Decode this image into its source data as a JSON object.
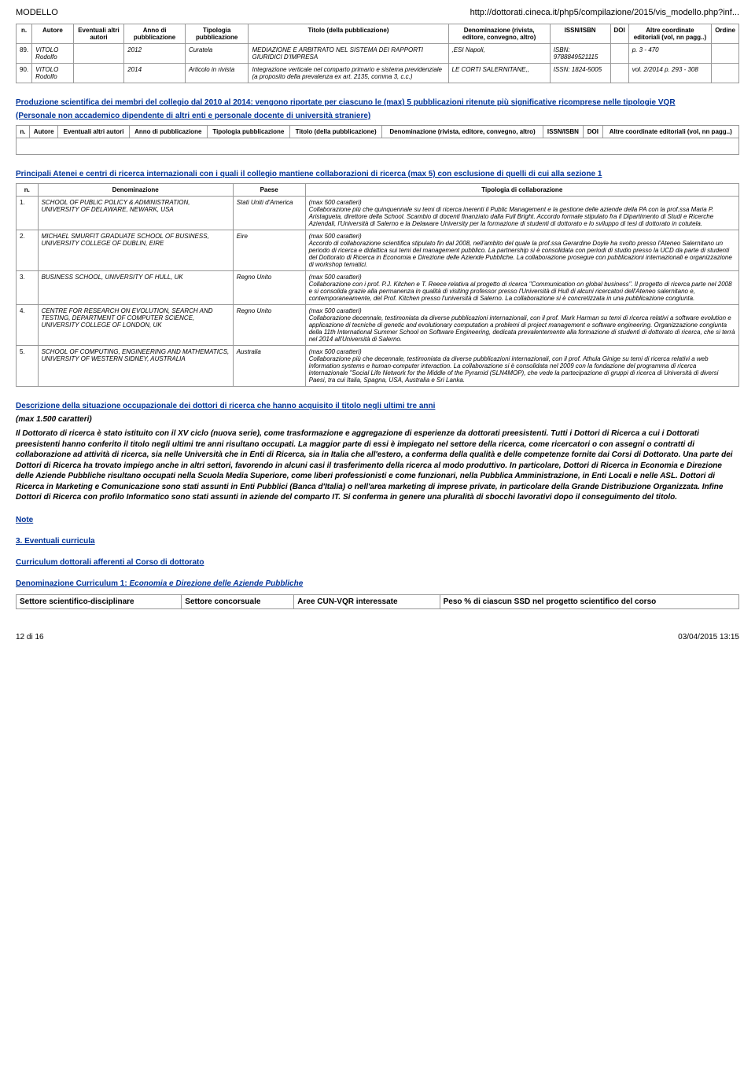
{
  "header": {
    "left": "MODELLO",
    "right": "http://dottorati.cineca.it/php5/compilazione/2015/vis_modello.php?inf..."
  },
  "table1": {
    "headers": [
      "n.",
      "Autore",
      "Eventuali altri autori",
      "Anno di pubblicazione",
      "Tipologia pubblicazione",
      "Titolo (della pubblicazione)",
      "Denominazione (rivista, editore, convegno, altro)",
      "ISSN/ISBN",
      "DOI",
      "Altre coordinate editoriali (vol, nn pagg..)",
      "Ordine"
    ],
    "rows": [
      {
        "n": "89.",
        "autore": "VITOLO Rodolfo",
        "eventuali": "",
        "anno": "2012",
        "tipologia": "Curatela",
        "titolo": "MEDIAZIONE E ARBITRATO NEL SISTEMA DEI RAPPORTI GIURIDICI D'IMPRESA",
        "denom": ",ESI Napoli,",
        "issn": "ISBN: 9788849521115",
        "doi": "",
        "altre": "p. 3 - 470",
        "ordine": ""
      },
      {
        "n": "90.",
        "autore": "VITOLO Rodolfo",
        "eventuali": "",
        "anno": "2014",
        "tipologia": "Articolo in rivista",
        "titolo": "Integrazione verticale nel comparto primario e sistema previdenziale (a proposito della prevalenza ex art. 2135, comma 3, c.c.)",
        "denom": "LE CORTI SALERNITANE,,",
        "issn": "ISSN: 1824-5005",
        "doi": "",
        "altre": "vol. 2/2014 p. 293 - 308",
        "ordine": ""
      }
    ]
  },
  "sec2": {
    "title": "Produzione scientifica dei membri del collegio dal 2010 al 2014: vengono riportate per ciascuno le (max) 5 pubblicazioni ritenute più significative ricomprese nelle tipologie VQR",
    "sub": "(Personale non accademico dipendente di altri enti e personale docente di università straniere)",
    "headers": [
      "n.",
      "Autore",
      "Eventuali altri autori",
      "Anno di pubblicazione",
      "Tipologia pubblicazione",
      "Titolo (della pubblicazione)",
      "Denominazione (rivista, editore, convegno, altro)",
      "ISSN/ISBN",
      "DOI",
      "Altre coordinate editoriali (vol, nn pagg..)"
    ]
  },
  "sec3": {
    "title": "Principali Atenei e centri di ricerca internazionali con i quali il collegio mantiene collaborazioni di ricerca (max 5) con esclusione di quelli di cui alla sezione 1",
    "headers": [
      "n.",
      "Denominazione",
      "Paese",
      "Tipologia di collaborazione"
    ],
    "hint": "(max 500 caratteri)",
    "rows": [
      {
        "n": "1.",
        "denom": "SCHOOL OF PUBLIC POLICY & ADMINISTRATION, UNIVERSITY OF DELAWARE, NEWARK, USA",
        "paese": "Stati Uniti d'America",
        "desc": "Collaborazione più che quinquennale su temi di ricerca inerenti il Public Management e la gestione delle aziende della PA con la prof.ssa Maria P. Aristagueta, direttore della School. Scambio di docenti finanziato dalla Full Bright. Accordo formale stipulato fra il Dipartimento di Studi e Ricerche Aziendali, l'Università di Salerno e la Delaware University per la formazione di studenti di dottorato e lo sviluppo di tesi di dottorato in cotutela."
      },
      {
        "n": "2.",
        "denom": "MICHAEL SMURFIT GRADUATE SCHOOL OF BUSINESS, UNIVERSITY COLLEGE OF DUBLIN, EIRE",
        "paese": "Eire",
        "desc": "Accordo di collaborazione scientifica stipulato fin dal 2008, nell'ambito del quale la prof.ssa Gerardine Doyle ha svolto presso l'Ateneo Salernitano un periodo di ricerca e didattica sui temi del management pubblico. La partnership si è consolidata con periodi di studio presso la UCD da parte di studenti del Dottorato di Ricerca in Economia e Direzione delle Aziende Pubbliche. La collaborazione prosegue con pubblicazioni internazionali e organizzazione di workshop tematici."
      },
      {
        "n": "3.",
        "denom": "BUSINESS SCHOOL, UNIVERSITY OF HULL, UK",
        "paese": "Regno Unito",
        "desc": "Collaborazione con i prof. P.J. Kitchen e T. Reece relativa al progetto di ricerca \"Communication on global business\". Il progetto di ricerca parte nel 2008 e si consolida grazie alla permanenza in qualità di visiting professor presso l'Università di Hull di alcuni ricercatori dell'Ateneo salernitano e, contemporaneamente, del Prof. Kitchen presso l'università di Salerno. La collaborazione si è concretizzata in una pubblicazione congiunta."
      },
      {
        "n": "4.",
        "denom": "CENTRE FOR RESEARCH ON EVOLUTION, SEARCH AND TESTING, DEPARTMENT OF COMPUTER SCIENCE, UNIVERSITY COLLEGE OF LONDON, UK",
        "paese": "Regno Unito",
        "desc": "Collaborazione decennale, testimoniata da diverse pubblicazioni internazionali, con il prof. Mark Harman su temi di ricerca relativi a software evolution e applicazione di tecniche di genetic and evolutionary computation a problemi di project management e software engineering. Organizzazione congiunta della 11th International Summer School on Software Engineering, dedicata prevalentemente alla formazione di studenti di dottorato di ricerca, che si terrà nel 2014 all'Università di Salerno."
      },
      {
        "n": "5.",
        "denom": "SCHOOL OF COMPUTING, ENGINEERING AND MATHEMATICS, UNIVERSITY OF WESTERN SIDNEY, AUSTRALIA",
        "paese": "Australia",
        "desc": "Collaborazione più che decennale, testimoniata da diverse pubblicazioni internazionali, con il prof. Athula Ginige su temi di ricerca relativi a web information systems e human-computer interaction. La collaborazione si è consolidata nel 2009 con la fondazione del programma di ricerca internazionale \"Social Life Network for the Middle of the Pyramid (SLN4MOP), che vede la partecipazione di gruppi di ricerca di Università di diversi Paesi, tra cui Italia, Spagna, USA, Australia e Sri Lanka."
      }
    ]
  },
  "sec4": {
    "title": "Descrizione della situazione occupazionale dei dottori di ricerca che hanno acquisito il titolo negli ultimi tre anni",
    "note": "(max 1.500 caratteri)",
    "text": "Il Dottorato di ricerca è stato istituito con il XV ciclo (nuova serie), come trasformazione e aggregazione di esperienze da dottorati preesistenti. Tutti i Dottori di Ricerca a cui i Dottorati preesistenti hanno conferito il titolo negli ultimi tre anni risultano occupati. La maggior parte di essi è impiegato nel settore della ricerca, come ricercatori o con assegni o contratti di collaborazione ad attività di ricerca, sia nelle Università che in Enti di Ricerca, sia in Italia che all'estero, a conferma della qualità e delle competenze fornite dai Corsi di Dottorato. Una parte dei Dottori di Ricerca ha trovato impiego anche in altri settori, favorendo in alcuni casi il trasferimento della ricerca al modo produttivo. In particolare, Dottori di Ricerca in Economia e Direzione delle Aziende Pubbliche risultano occupati nella Scuola Media Superiore, come liberi professionisti e come funzionari, nella Pubblica Amministrazione, in Enti Locali e nelle ASL. Dottori di Ricerca in Marketing e Comunicazione sono stati assunti in Enti Pubblici (Banca d'Italia) o nell'area marketing di imprese private, in particolare della Grande Distribuzione Organizzata. Infine Dottori di Ricerca con profilo Informatico sono stati assunti in aziende del comparto IT. Si conferma in genere una pluralità di sbocchi lavorativi dopo il conseguimento del titolo."
  },
  "links": {
    "note": "Note",
    "curricula": "3. Eventuali curricula",
    "curriculum_aff": "Curriculum dottorali afferenti al Corso di dottorato",
    "denom_curr": "Denominazione Curriculum 1: ",
    "denom_curr_val": "Economia e Direzione delle Aziende Pubbliche"
  },
  "table_bottom": {
    "headers": [
      "Settore scientifico-disciplinare",
      "Settore concorsuale",
      "Aree CUN-VQR interessate",
      "Peso % di ciascun SSD nel progetto scientifico del corso"
    ]
  },
  "footer": {
    "left": "12 di 16",
    "right": "03/04/2015 13:15"
  }
}
